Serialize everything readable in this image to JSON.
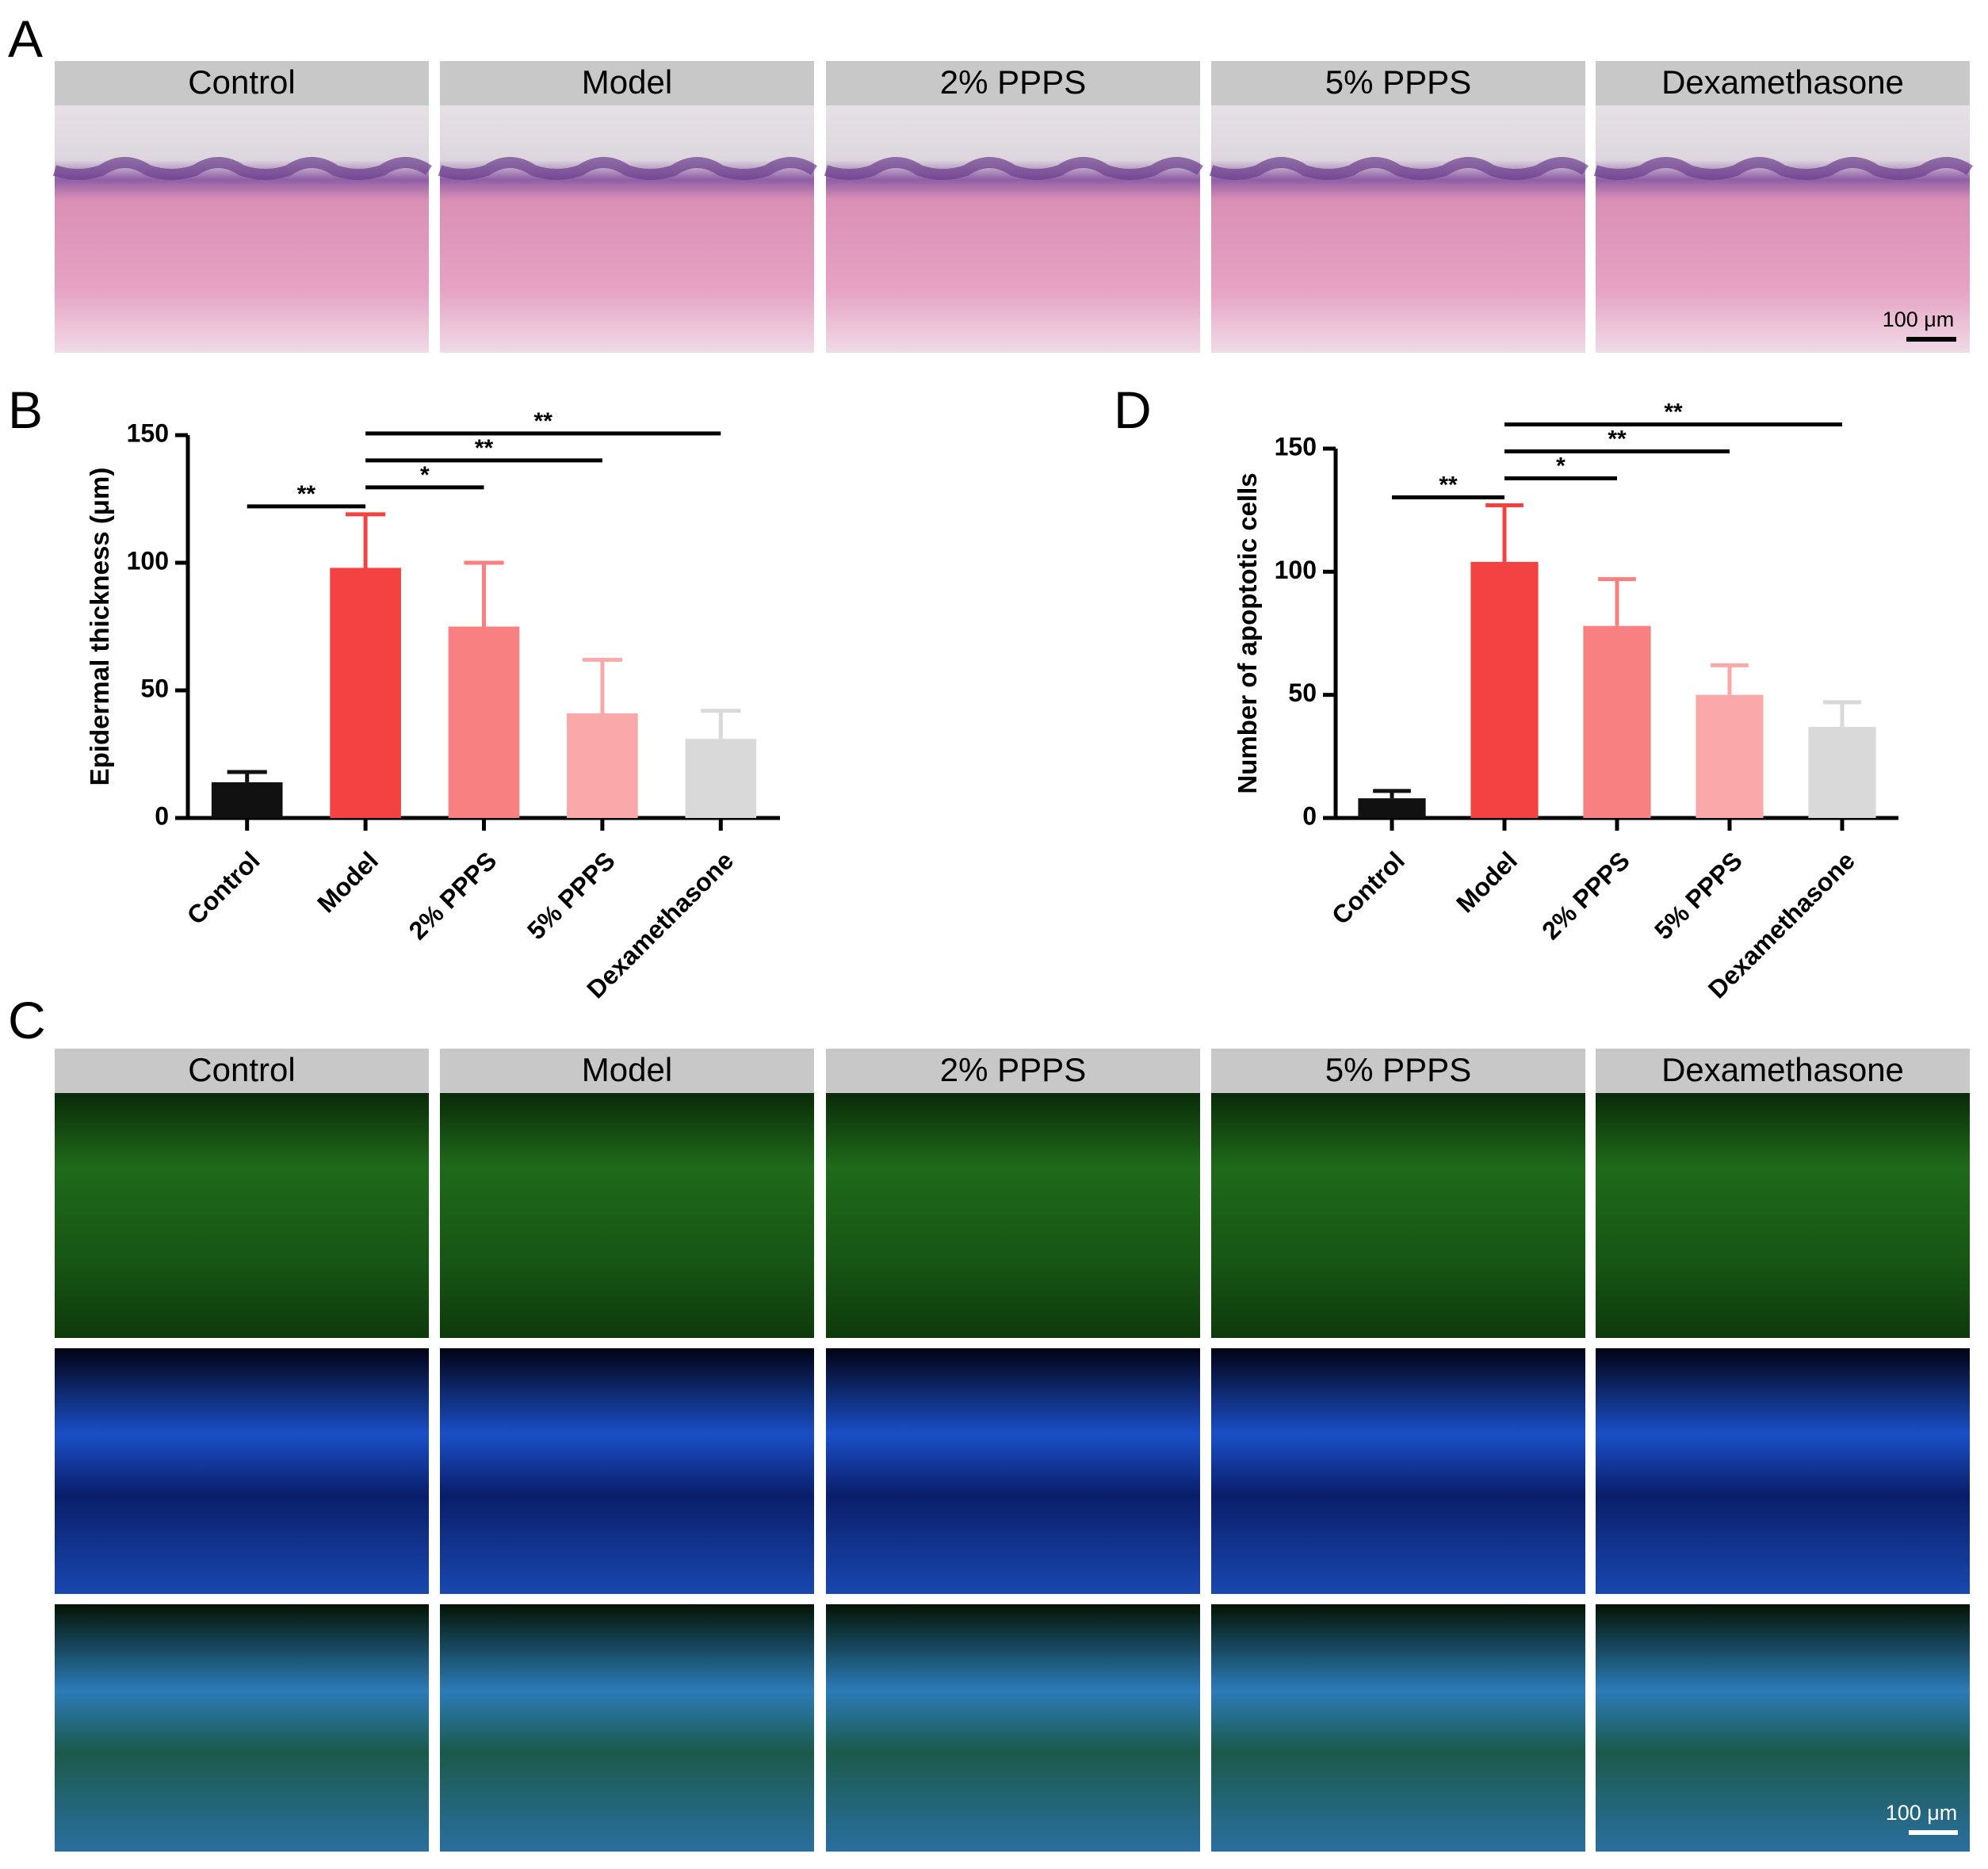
{
  "panel_a": {
    "letter": "A",
    "headers": [
      "Control",
      "Model",
      "2% PPPS",
      "5% PPPS",
      "Dexamethasone"
    ],
    "scale_bar": "100 μm"
  },
  "panel_c": {
    "letter": "C",
    "headers": [
      "Control",
      "Model",
      "2% PPPS",
      "5% PPPS",
      "Dexamethasone"
    ],
    "scale_bar": "100 μm"
  },
  "chart_data": [
    {
      "type": "bar",
      "panel": "B",
      "ylabel": "Epidermal thickness (μm)",
      "categories": [
        "Control",
        "Model",
        "2% PPPS",
        "5% PPPS",
        "Dexamethasone"
      ],
      "values": [
        14,
        98,
        75,
        41,
        31
      ],
      "errors": [
        4,
        21,
        25,
        21,
        11
      ],
      "colors": [
        "#111111",
        "#f44141",
        "#f88080",
        "#f9a9a9",
        "#d9d9d9"
      ],
      "ylim": [
        0,
        150
      ],
      "yticks": [
        0,
        50,
        100,
        150
      ],
      "significance": [
        {
          "label": "**",
          "between": [
            "Control",
            "Model"
          ]
        },
        {
          "label": "*",
          "between": [
            "Model",
            "2% PPPS"
          ]
        },
        {
          "label": "**",
          "between": [
            "Model",
            "5% PPPS"
          ]
        },
        {
          "label": "**",
          "between": [
            "Model",
            "Dexamethasone"
          ]
        }
      ]
    },
    {
      "type": "bar",
      "panel": "D",
      "ylabel": "Number of apoptotic cells",
      "categories": [
        "Control",
        "Model",
        "2% PPPS",
        "5% PPPS",
        "Dexamethasone"
      ],
      "values": [
        8,
        104,
        78,
        50,
        37
      ],
      "errors": [
        3,
        23,
        19,
        12,
        10
      ],
      "colors": [
        "#111111",
        "#f44141",
        "#f88080",
        "#f9a9a9",
        "#d9d9d9"
      ],
      "ylim": [
        0,
        150
      ],
      "yticks": [
        0,
        50,
        100,
        150
      ],
      "significance": [
        {
          "label": "**",
          "between": [
            "Control",
            "Model"
          ]
        },
        {
          "label": "*",
          "between": [
            "Model",
            "2% PPPS"
          ]
        },
        {
          "label": "**",
          "between": [
            "Model",
            "5% PPPS"
          ]
        },
        {
          "label": "**",
          "between": [
            "Model",
            "Dexamethasone"
          ]
        }
      ]
    }
  ]
}
